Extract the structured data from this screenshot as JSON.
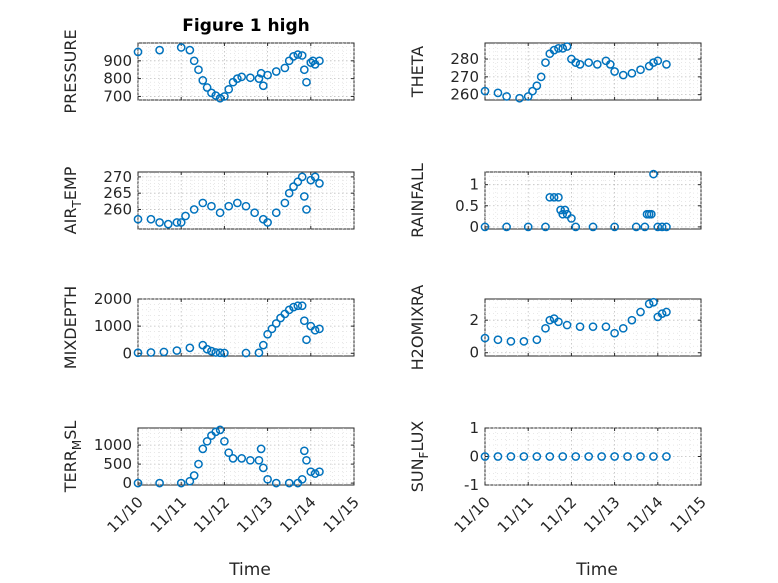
{
  "figure": {
    "title": "Figure 1 high",
    "xlabel": "Time",
    "marker_color": "#0072BD",
    "x_ticks": [
      "11/10",
      "11/11",
      "11/12",
      "11/13",
      "11/14",
      "11/15"
    ]
  },
  "chart_data": [
    {
      "type": "scatter",
      "title": "Figure 1 high",
      "ylabel": "PRESSURE",
      "xlim": [
        0,
        5
      ],
      "ylim": [
        680,
        1000
      ],
      "yticks": [
        700,
        800,
        900
      ],
      "ytick_labels": [
        "700",
        "800",
        "900"
      ],
      "x": [
        0.0,
        0.5,
        1.0,
        1.2,
        1.3,
        1.4,
        1.5,
        1.6,
        1.7,
        1.8,
        1.9,
        2.0,
        2.1,
        2.2,
        2.3,
        2.4,
        2.6,
        2.8,
        2.85,
        2.9,
        3.0,
        3.2,
        3.4,
        3.5,
        3.6,
        3.7,
        3.8,
        3.85,
        3.9,
        4.0,
        4.05,
        4.1,
        4.2
      ],
      "y": [
        950,
        960,
        975,
        960,
        900,
        850,
        790,
        750,
        720,
        705,
        690,
        700,
        740,
        780,
        800,
        810,
        805,
        800,
        830,
        760,
        820,
        840,
        860,
        900,
        925,
        935,
        930,
        850,
        780,
        890,
        900,
        880,
        900
      ]
    },
    {
      "type": "scatter",
      "title": "",
      "ylabel": "THETA",
      "xlim": [
        0,
        5
      ],
      "ylim": [
        257,
        289
      ],
      "yticks": [
        260,
        270,
        280
      ],
      "ytick_labels": [
        "260",
        "270",
        "280"
      ],
      "x": [
        0.0,
        0.3,
        0.5,
        0.8,
        1.0,
        1.1,
        1.2,
        1.3,
        1.4,
        1.5,
        1.6,
        1.7,
        1.8,
        1.9,
        2.0,
        2.1,
        2.2,
        2.4,
        2.6,
        2.8,
        2.9,
        3.0,
        3.2,
        3.4,
        3.6,
        3.8,
        3.9,
        4.0,
        4.2
      ],
      "y": [
        262,
        261,
        259,
        258,
        259,
        262,
        265,
        270,
        278,
        283,
        285,
        286,
        286,
        287,
        280,
        278,
        277,
        278,
        277,
        279,
        277,
        273,
        271,
        272,
        274,
        276,
        278,
        279,
        277
      ]
    },
    {
      "type": "scatter",
      "title": "",
      "ylabel": "AIR_TEMP",
      "xlim": [
        0,
        5
      ],
      "ylim": [
        254,
        271.5
      ],
      "yticks": [
        260,
        265,
        270
      ],
      "ytick_labels": [
        "260",
        "265",
        "270"
      ],
      "x": [
        0.0,
        0.3,
        0.5,
        0.7,
        0.9,
        1.0,
        1.1,
        1.3,
        1.5,
        1.7,
        1.9,
        2.1,
        2.3,
        2.5,
        2.7,
        2.9,
        3.0,
        3.2,
        3.4,
        3.5,
        3.6,
        3.7,
        3.8,
        3.85,
        3.9,
        4.0,
        4.1,
        4.2
      ],
      "y": [
        257,
        257,
        256,
        255.5,
        256,
        256,
        258,
        260,
        262,
        261,
        259,
        261,
        262,
        261,
        259,
        257,
        256,
        259,
        262,
        265,
        267,
        268.5,
        270,
        264,
        260,
        269,
        270,
        268
      ]
    },
    {
      "type": "scatter",
      "title": "",
      "ylabel": "RAINFALL",
      "xlim": [
        0,
        5
      ],
      "ylim": [
        -0.05,
        1.3
      ],
      "yticks": [
        0,
        0.5,
        1
      ],
      "ytick_labels": [
        "0",
        "0.5",
        "1"
      ],
      "x": [
        0.0,
        0.5,
        1.0,
        1.4,
        1.5,
        1.6,
        1.7,
        1.75,
        1.8,
        1.85,
        1.9,
        2.0,
        2.1,
        2.5,
        3.0,
        3.5,
        3.7,
        3.75,
        3.8,
        3.85,
        3.9,
        4.0,
        4.1,
        4.2
      ],
      "y": [
        0,
        0,
        0,
        0,
        0.7,
        0.7,
        0.7,
        0.4,
        0.3,
        0.4,
        0.3,
        0.2,
        0,
        0,
        0,
        0,
        0,
        0.3,
        0.3,
        0.3,
        1.25,
        0,
        0,
        0
      ]
    },
    {
      "type": "scatter",
      "title": "",
      "ylabel": "MIXDEPTH",
      "xlim": [
        0,
        5
      ],
      "ylim": [
        -100,
        2000
      ],
      "yticks": [
        0,
        1000,
        2000
      ],
      "ytick_labels": [
        "0",
        "1000",
        "2000"
      ],
      "x": [
        0.0,
        0.3,
        0.6,
        0.9,
        1.2,
        1.5,
        1.6,
        1.7,
        1.8,
        1.9,
        2.0,
        2.5,
        2.8,
        2.9,
        3.0,
        3.1,
        3.2,
        3.3,
        3.4,
        3.5,
        3.6,
        3.7,
        3.8,
        3.85,
        3.9,
        4.0,
        4.1,
        4.2
      ],
      "y": [
        20,
        30,
        50,
        100,
        200,
        300,
        150,
        80,
        30,
        20,
        10,
        10,
        20,
        300,
        700,
        900,
        1100,
        1300,
        1450,
        1600,
        1700,
        1750,
        1750,
        1200,
        500,
        1000,
        850,
        900
      ]
    },
    {
      "type": "scatter",
      "title": "",
      "ylabel": "H2OMIXRA",
      "xlim": [
        0,
        5
      ],
      "ylim": [
        -0.2,
        3.3
      ],
      "yticks": [
        0,
        2
      ],
      "ytick_labels": [
        "0",
        "2"
      ],
      "x": [
        0.0,
        0.3,
        0.6,
        0.9,
        1.2,
        1.4,
        1.5,
        1.6,
        1.7,
        1.9,
        2.2,
        2.5,
        2.8,
        3.0,
        3.2,
        3.4,
        3.6,
        3.8,
        3.9,
        4.0,
        4.1,
        4.2
      ],
      "y": [
        0.9,
        0.8,
        0.7,
        0.7,
        0.8,
        1.5,
        2.0,
        2.1,
        1.9,
        1.7,
        1.6,
        1.6,
        1.6,
        1.2,
        1.5,
        2.0,
        2.5,
        3.0,
        3.1,
        2.2,
        2.4,
        2.5
      ]
    },
    {
      "type": "scatter",
      "title": "",
      "ylabel": "TERR_MSL",
      "xlim": [
        0,
        5
      ],
      "ylim": [
        -50,
        1450
      ],
      "yticks": [
        0,
        500,
        1000
      ],
      "ytick_labels": [
        "0",
        "500",
        "1000"
      ],
      "x": [
        0.0,
        0.5,
        1.0,
        1.2,
        1.3,
        1.4,
        1.5,
        1.6,
        1.7,
        1.8,
        1.9,
        2.0,
        2.1,
        2.2,
        2.4,
        2.6,
        2.8,
        2.85,
        2.9,
        3.0,
        3.2,
        3.5,
        3.7,
        3.8,
        3.85,
        3.9,
        4.0,
        4.1,
        4.2
      ],
      "y": [
        0,
        0,
        0,
        50,
        200,
        500,
        900,
        1100,
        1250,
        1350,
        1400,
        1100,
        800,
        650,
        650,
        600,
        600,
        900,
        400,
        100,
        0,
        0,
        0,
        100,
        850,
        600,
        300,
        250,
        300
      ]
    },
    {
      "type": "scatter",
      "title": "",
      "ylabel": "SUN_FLUX",
      "xlim": [
        0,
        5
      ],
      "ylim": [
        -1,
        1
      ],
      "yticks": [
        -1,
        0,
        1
      ],
      "ytick_labels": [
        "-1",
        "0",
        "1"
      ],
      "x": [
        0.0,
        0.3,
        0.6,
        0.9,
        1.2,
        1.5,
        1.8,
        2.1,
        2.4,
        2.7,
        3.0,
        3.3,
        3.6,
        3.9,
        4.2
      ],
      "y": [
        0,
        0,
        0,
        0,
        0,
        0,
        0,
        0,
        0,
        0,
        0,
        0,
        0,
        0,
        0
      ]
    }
  ]
}
